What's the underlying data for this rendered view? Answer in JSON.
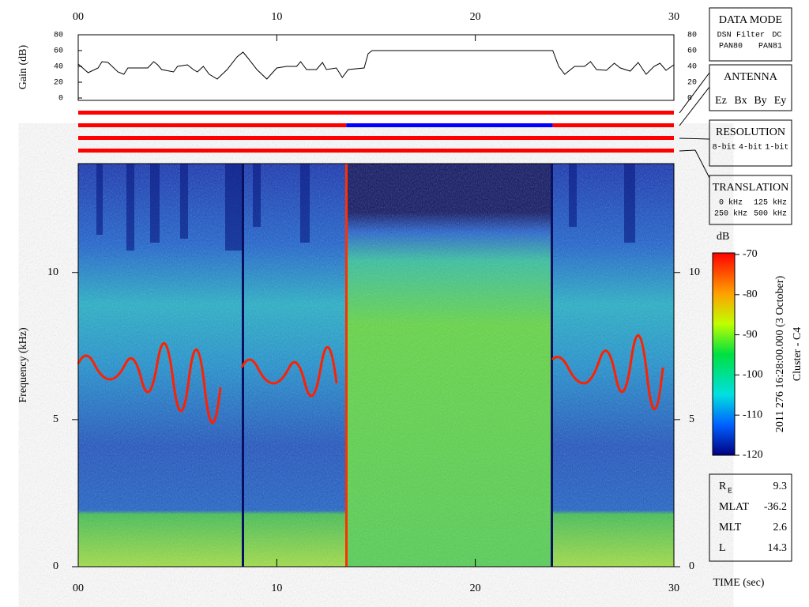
{
  "chart_data": [
    {
      "type": "line",
      "ylabel": "Gain (dB)",
      "color": "#000000",
      "xlim": [
        0,
        30
      ],
      "xticks": [
        {
          "value": 0,
          "label": "00"
        },
        10,
        20,
        30
      ],
      "ylim": [
        0,
        80
      ],
      "yticks": [
        0,
        20,
        40,
        60,
        80
      ],
      "x": [
        0,
        0.5,
        1,
        1.2,
        1.5,
        2,
        2.3,
        2.5,
        3,
        3.5,
        3.8,
        4,
        4.2,
        4.8,
        5,
        5.5,
        5.8,
        6,
        6.3,
        6.6,
        7,
        7.5,
        8,
        8.3,
        8.5,
        9,
        9.5,
        10,
        10.5,
        11,
        11.2,
        11.5,
        12,
        12.3,
        12.5,
        13,
        13.3,
        13.6,
        14.4,
        14.6,
        14.8,
        23.9,
        24.2,
        24.5,
        25,
        25.5,
        25.8,
        26.1,
        26.6,
        27,
        27.3,
        27.8,
        28.2,
        28.6,
        29,
        29.3,
        29.6,
        30
      ],
      "values": [
        43,
        32,
        38,
        46,
        45,
        33,
        30,
        38,
        38,
        38,
        46,
        42,
        36,
        33,
        40,
        42,
        36,
        33,
        40,
        30,
        24,
        36,
        52,
        58,
        52,
        36,
        24,
        38,
        40,
        40,
        46,
        36,
        36,
        45,
        36,
        38,
        26,
        36,
        38,
        56,
        60,
        60,
        40,
        30,
        40,
        40,
        46,
        36,
        35,
        44,
        38,
        34,
        45,
        30,
        40,
        44,
        35,
        42
      ]
    },
    {
      "type": "heatmap",
      "ylabel": "Frequency (kHz)",
      "xlabel": "TIME (sec)",
      "xlim": [
        0,
        30
      ],
      "xticks": [
        {
          "value": 0,
          "label": "00"
        },
        10,
        20,
        30
      ],
      "ylim": [
        0,
        13.7
      ],
      "yticks": [
        0,
        5,
        10
      ],
      "colorbar": {
        "label": "dB",
        "lim": [
          -120,
          -70
        ],
        "ticks": [
          -70,
          -80,
          -90,
          -100,
          -110,
          -120
        ]
      }
    }
  ],
  "status_bars": [
    [
      {
        "start": 0,
        "end": 30,
        "color": "#ff0000"
      }
    ],
    [
      {
        "start": 0,
        "end": 13.5,
        "color": "#ff0000"
      },
      {
        "start": 13.5,
        "end": 23.9,
        "color": "#0000ff"
      },
      {
        "start": 23.9,
        "end": 30,
        "color": "#ff0000"
      }
    ],
    [
      {
        "start": 0,
        "end": 30,
        "color": "#ff0000"
      }
    ],
    [
      {
        "start": 0,
        "end": 30,
        "color": "#ff0000"
      }
    ]
  ],
  "caption": "2011 276 16:28:00.000 (3 October)",
  "spacecraft": "Cluster - C4",
  "panels": {
    "data_mode": {
      "title": "DATA MODE",
      "items": [
        {
          "name": "DSN",
          "color": "#ff0000"
        },
        {
          "name": "Filter",
          "color": "#00cc00"
        },
        {
          "name": "DC",
          "color": "#0000ff"
        },
        {
          "name": "PAN80",
          "color": "#000000"
        },
        {
          "name": "PAN81",
          "color": "#00cccc"
        }
      ]
    },
    "antenna": {
      "title": "ANTENNA",
      "items": [
        {
          "name": "Ez",
          "color": "#ff0000"
        },
        {
          "name": "Bx",
          "color": "#00cc00"
        },
        {
          "name": "By",
          "color": "#0000ff"
        },
        {
          "name": "Ey",
          "color": "#000000"
        }
      ]
    },
    "resolution": {
      "title": "RESOLUTION",
      "items": [
        {
          "name": "8-bit",
          "color": "#ff0000"
        },
        {
          "name": "4-bit",
          "color": "#00cc00"
        },
        {
          "name": "1-bit",
          "color": "#0000ff"
        }
      ]
    },
    "translation": {
      "title": "TRANSLATION",
      "items": [
        {
          "name": "0 kHz",
          "color": "#ff0000"
        },
        {
          "name": "125 kHz",
          "color": "#00cc00"
        },
        {
          "name": "250 kHz",
          "color": "#0000ff"
        },
        {
          "name": "500 kHz",
          "color": "#000000"
        }
      ]
    }
  },
  "orbit": [
    {
      "label": "R",
      "subscript": "E",
      "value": 9.3
    },
    {
      "label": "MLAT",
      "value": -36.2
    },
    {
      "label": "MLT",
      "value": 2.6
    },
    {
      "label": "L",
      "value": 14.3
    }
  ]
}
